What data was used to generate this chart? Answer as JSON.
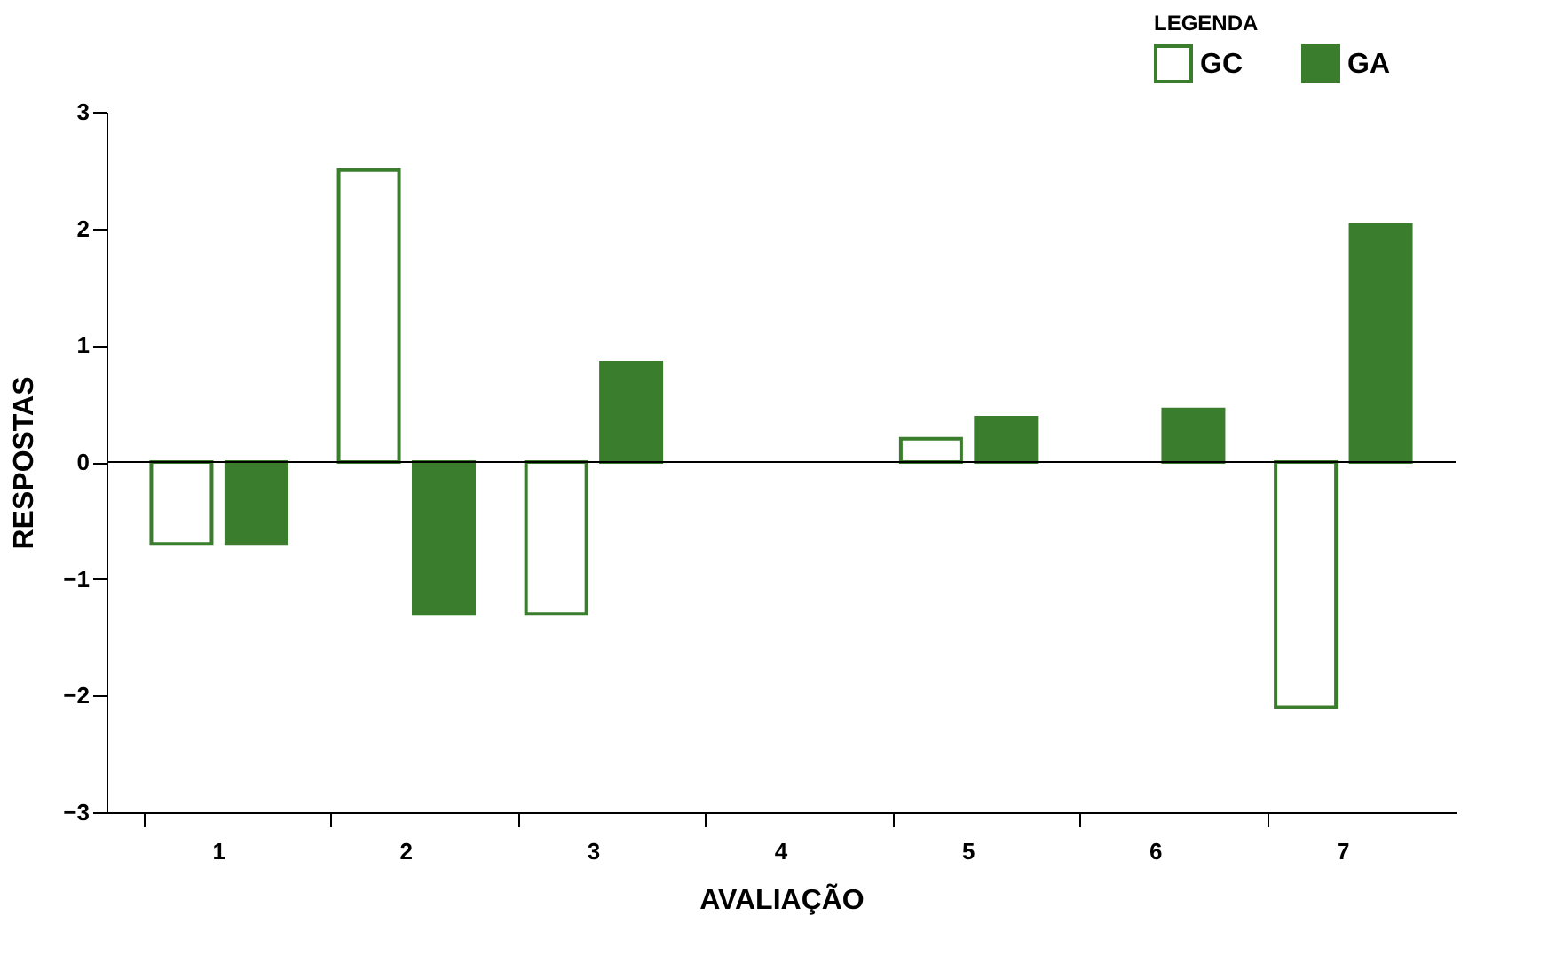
{
  "chart_data": {
    "type": "bar",
    "xlabel": "AVALIAÇÃO",
    "ylabel": "RESPOSTAS",
    "legend_title": "LEGENDA",
    "legend": "top right",
    "grid": false,
    "categories": [
      "1",
      "2",
      "3",
      "4",
      "5",
      "6",
      "7"
    ],
    "series": [
      {
        "name": "GC",
        "color": "#ffffff",
        "values": [
          -0.7,
          2.5,
          -1.3,
          null,
          0.2,
          null,
          -2.1
        ]
      },
      {
        "name": "GA",
        "color": "#3a7d2c",
        "values": [
          -0.7,
          -1.3,
          0.85,
          null,
          0.38,
          0.45,
          2.03
        ]
      }
    ],
    "ylim": [
      -3,
      3
    ],
    "yticks": [
      -3,
      -2,
      -1,
      0,
      1,
      2,
      3
    ],
    "ref_lines": [
      {
        "axis": "y",
        "value": 0,
        "color": "#000000"
      }
    ]
  }
}
